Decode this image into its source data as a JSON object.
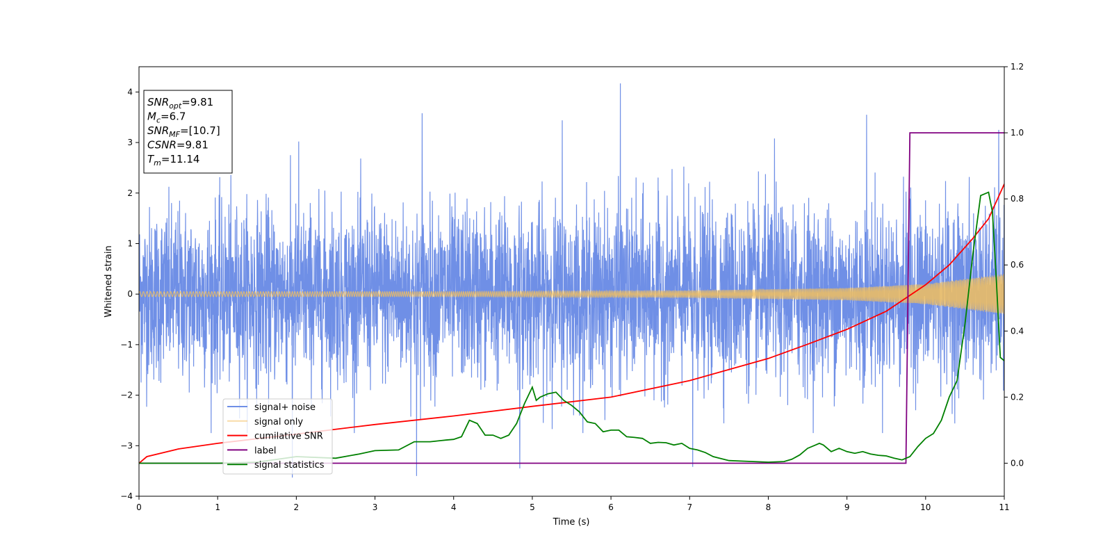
{
  "chart_data": {
    "type": "line",
    "xlabel": "Time (s)",
    "ylabel": "Whitened strain",
    "xlim": [
      0,
      11
    ],
    "ylim": [
      -4,
      4.5
    ],
    "y2lim": [
      -0.1,
      1.2
    ],
    "x_ticks": [
      "0",
      "1",
      "2",
      "3",
      "4",
      "5",
      "6",
      "7",
      "8",
      "9",
      "10",
      "11"
    ],
    "y_ticks": [
      "−4",
      "−3",
      "−2",
      "−1",
      "0",
      "1",
      "2",
      "3",
      "4"
    ],
    "y2_ticks": [
      "0.0",
      "0.2",
      "0.4",
      "0.6",
      "0.8",
      "1.0",
      "1.2"
    ],
    "grid": false,
    "legend_position": "bottom-left",
    "annotation": {
      "lines": [
        {
          "main": "SNR",
          "sub": "opt",
          "value": "=9.81"
        },
        {
          "main": "M",
          "sub": "c",
          "value": "=6.7"
        },
        {
          "main": "SNR",
          "sub": "MF",
          "value": "=[10.7]"
        },
        {
          "main": "CSNR",
          "sub": "",
          "value": "=9.81"
        },
        {
          "main": "T",
          "sub": "m",
          "value": "=11.14"
        }
      ]
    },
    "series": [
      {
        "name": "signal+ noise",
        "color": "#6f8fe6",
        "axis": "left",
        "kind": "noise",
        "amplitude_std": 0.85,
        "peaks": [
          {
            "x": 1.95,
            "y": -3.63
          },
          {
            "x": 3.53,
            "y": -3.6
          },
          {
            "x": 3.6,
            "y": 3.58
          },
          {
            "x": 4.84,
            "y": -3.45
          },
          {
            "x": 5.38,
            "y": 3.44
          },
          {
            "x": 6.12,
            "y": 4.17
          },
          {
            "x": 7.04,
            "y": -3.42
          },
          {
            "x": 9.25,
            "y": 3.55
          },
          {
            "x": 10.93,
            "y": 3.25
          },
          {
            "x": 2.03,
            "y": 3.02
          },
          {
            "x": 8.08,
            "y": 3.08
          }
        ]
      },
      {
        "name": "signal only",
        "color": "#f2bf5e",
        "axis": "left",
        "kind": "chirp",
        "envelope": [
          [
            0,
            0.05
          ],
          [
            4,
            0.05
          ],
          [
            7,
            0.07
          ],
          [
            9,
            0.12
          ],
          [
            10,
            0.2
          ],
          [
            11,
            0.4
          ]
        ]
      },
      {
        "name": "cumilative SNR",
        "color": "#ff0000",
        "axis": "right",
        "kind": "curve",
        "x": [
          0,
          0.1,
          0.5,
          1,
          2,
          3,
          4,
          5,
          6,
          7,
          8,
          8.5,
          9,
          9.5,
          10,
          10.3,
          10.6,
          10.8,
          11
        ],
        "y": [
          0.0,
          0.02,
          0.043,
          0.06,
          0.088,
          0.117,
          0.143,
          0.172,
          0.2,
          0.25,
          0.317,
          0.36,
          0.405,
          0.46,
          0.54,
          0.6,
          0.68,
          0.74,
          0.845
        ]
      },
      {
        "name": "label",
        "color": "#800080",
        "axis": "right",
        "kind": "curve",
        "x": [
          0,
          9.75,
          9.8,
          11
        ],
        "y": [
          0,
          0,
          1,
          1
        ]
      },
      {
        "name": "signal statistics",
        "color": "#008000",
        "axis": "right",
        "kind": "curve",
        "x": [
          0,
          1,
          1.5,
          2,
          2.5,
          2.8,
          3.0,
          3.3,
          3.5,
          3.7,
          3.9,
          4.0,
          4.1,
          4.2,
          4.3,
          4.4,
          4.5,
          4.6,
          4.7,
          4.8,
          4.9,
          5.0,
          5.05,
          5.1,
          5.2,
          5.3,
          5.4,
          5.5,
          5.6,
          5.7,
          5.8,
          5.9,
          6.0,
          6.1,
          6.2,
          6.3,
          6.4,
          6.5,
          6.6,
          6.7,
          6.8,
          6.9,
          7.0,
          7.1,
          7.2,
          7.3,
          7.5,
          7.7,
          8.0,
          8.2,
          8.3,
          8.4,
          8.5,
          8.6,
          8.65,
          8.7,
          8.8,
          8.9,
          9.0,
          9.1,
          9.2,
          9.3,
          9.4,
          9.5,
          9.6,
          9.7,
          9.8,
          9.9,
          10.0,
          10.1,
          10.2,
          10.3,
          10.4,
          10.5,
          10.6,
          10.7,
          10.8,
          10.85,
          10.9,
          10.95,
          11.0
        ],
        "y": [
          0.0,
          0.0,
          0.003,
          0.02,
          0.015,
          0.028,
          0.038,
          0.04,
          0.065,
          0.065,
          0.07,
          0.072,
          0.08,
          0.13,
          0.12,
          0.085,
          0.085,
          0.075,
          0.085,
          0.12,
          0.18,
          0.23,
          0.19,
          0.2,
          0.21,
          0.215,
          0.19,
          0.175,
          0.155,
          0.125,
          0.12,
          0.095,
          0.1,
          0.1,
          0.08,
          0.078,
          0.075,
          0.06,
          0.063,
          0.062,
          0.055,
          0.06,
          0.045,
          0.04,
          0.032,
          0.02,
          0.008,
          0.006,
          0.003,
          0.005,
          0.012,
          0.025,
          0.045,
          0.055,
          0.06,
          0.055,
          0.035,
          0.045,
          0.035,
          0.03,
          0.035,
          0.028,
          0.024,
          0.022,
          0.015,
          0.01,
          0.02,
          0.05,
          0.075,
          0.09,
          0.13,
          0.2,
          0.25,
          0.42,
          0.63,
          0.81,
          0.82,
          0.76,
          0.55,
          0.32,
          0.31
        ]
      }
    ]
  }
}
